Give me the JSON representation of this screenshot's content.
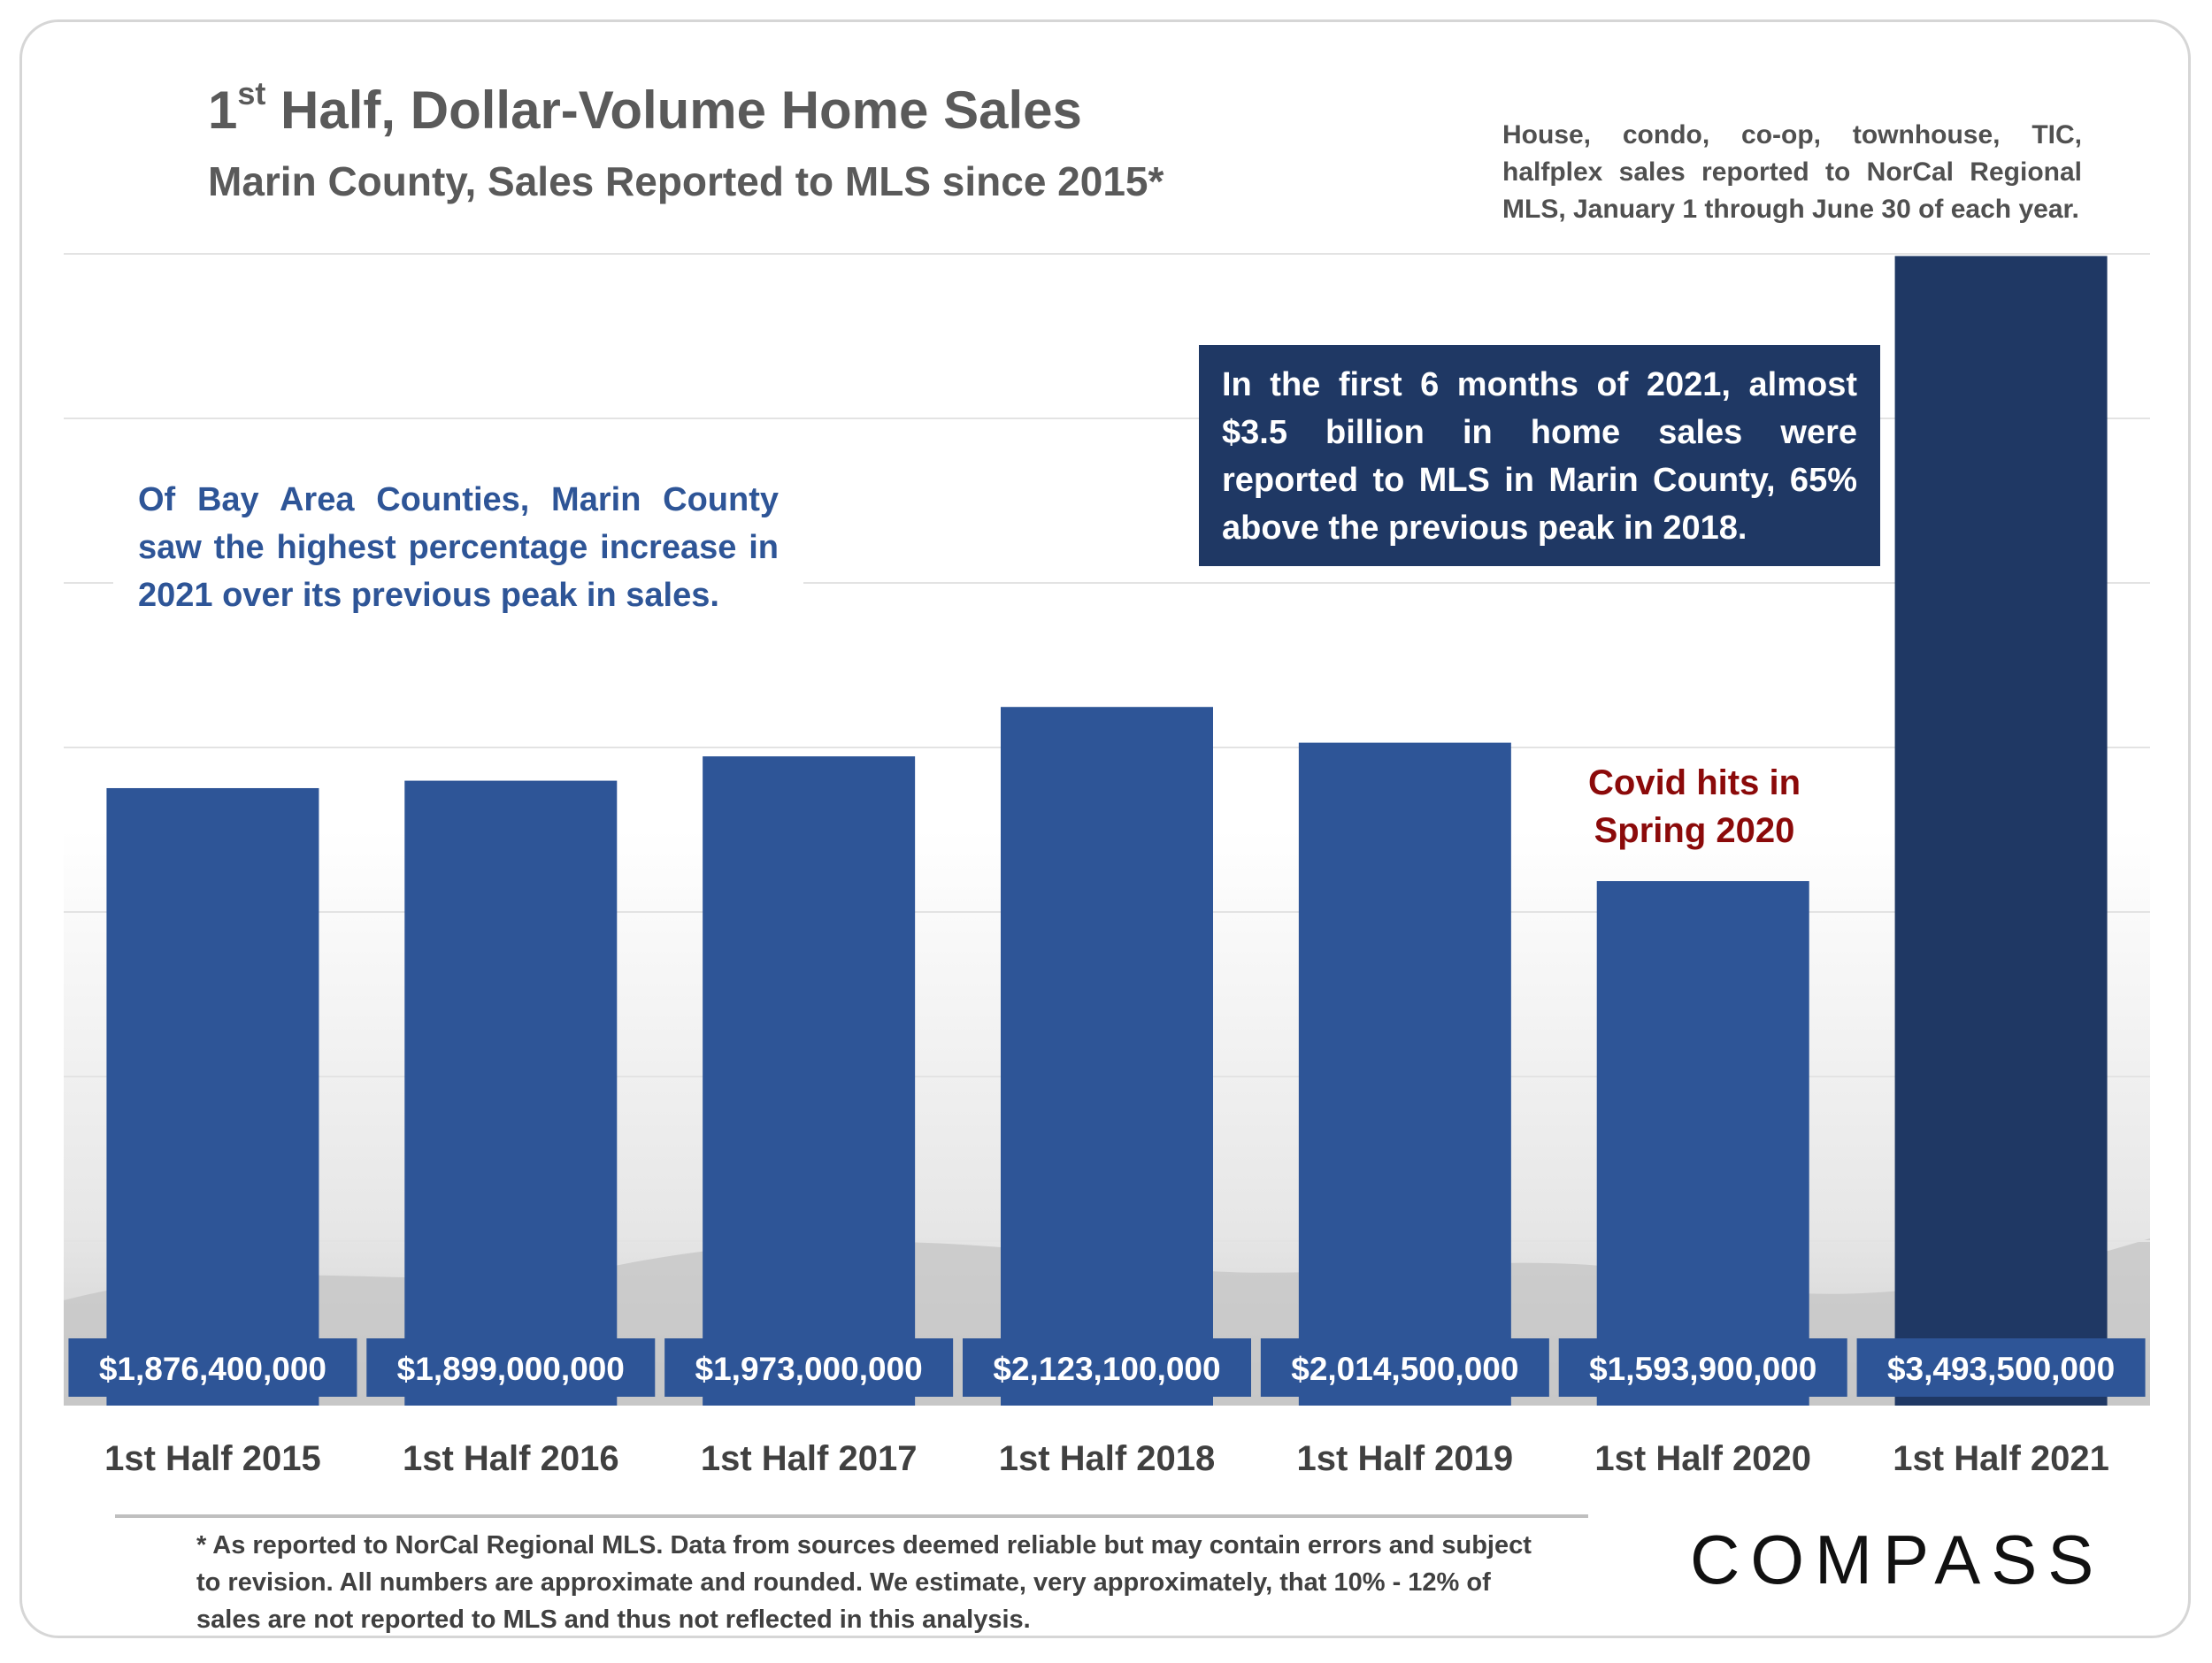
{
  "title_main": "1",
  "title_sup": "st",
  "title_rest": " Half, Dollar-Volume Home Sales",
  "subtitle": "Marin County, Sales Reported to MLS since 2015*",
  "note": "House, condo, co-op, townhouse, TIC, halfplex sales reported to NorCal Regional MLS, January 1 through June 30 of each year.",
  "callout_left": "Of Bay Area Counties, Marin County saw the highest percentage increase in 2021 over its previous peak in sales.",
  "callout_right": "In the first 6 months of 2021, almost $3.5 billion in home sales were reported to MLS in Marin County, 65% above the previous peak in 2018.",
  "covid_annotation": "Covid hits in Spring 2020",
  "footnote": "* As reported to NorCal Regional MLS. Data from sources deemed reliable but may contain errors and subject to revision. All numbers are approximate and rounded. We estimate, very approximately, that 10% - 12% of sales are not reported to MLS and thus not reflected in this analysis.",
  "logo": "COMPASS",
  "colors": {
    "bar": "#2e5597",
    "bar_highlight": "#1f3864",
    "label_box": "#2e5597",
    "covid_text": "#8b0a0a"
  },
  "chart_data": {
    "type": "bar",
    "categories": [
      "1st Half 2015",
      "1st Half 2016",
      "1st Half 2017",
      "1st Half 2018",
      "1st Half 2019",
      "1st Half 2020",
      "1st Half 2021"
    ],
    "values": [
      1876400000,
      1899000000,
      1973000000,
      2123100000,
      2014500000,
      1593900000,
      3493500000
    ],
    "value_labels": [
      "$1,876,400,000",
      "$1,899,000,000",
      "$1,973,000,000",
      "$2,123,100,000",
      "$2,014,500,000",
      "$1,593,900,000",
      "$3,493,500,000"
    ],
    "highlight_index": 6,
    "ylim": [
      0,
      3500000000
    ],
    "grid": true,
    "axis_labels_shown": false
  }
}
